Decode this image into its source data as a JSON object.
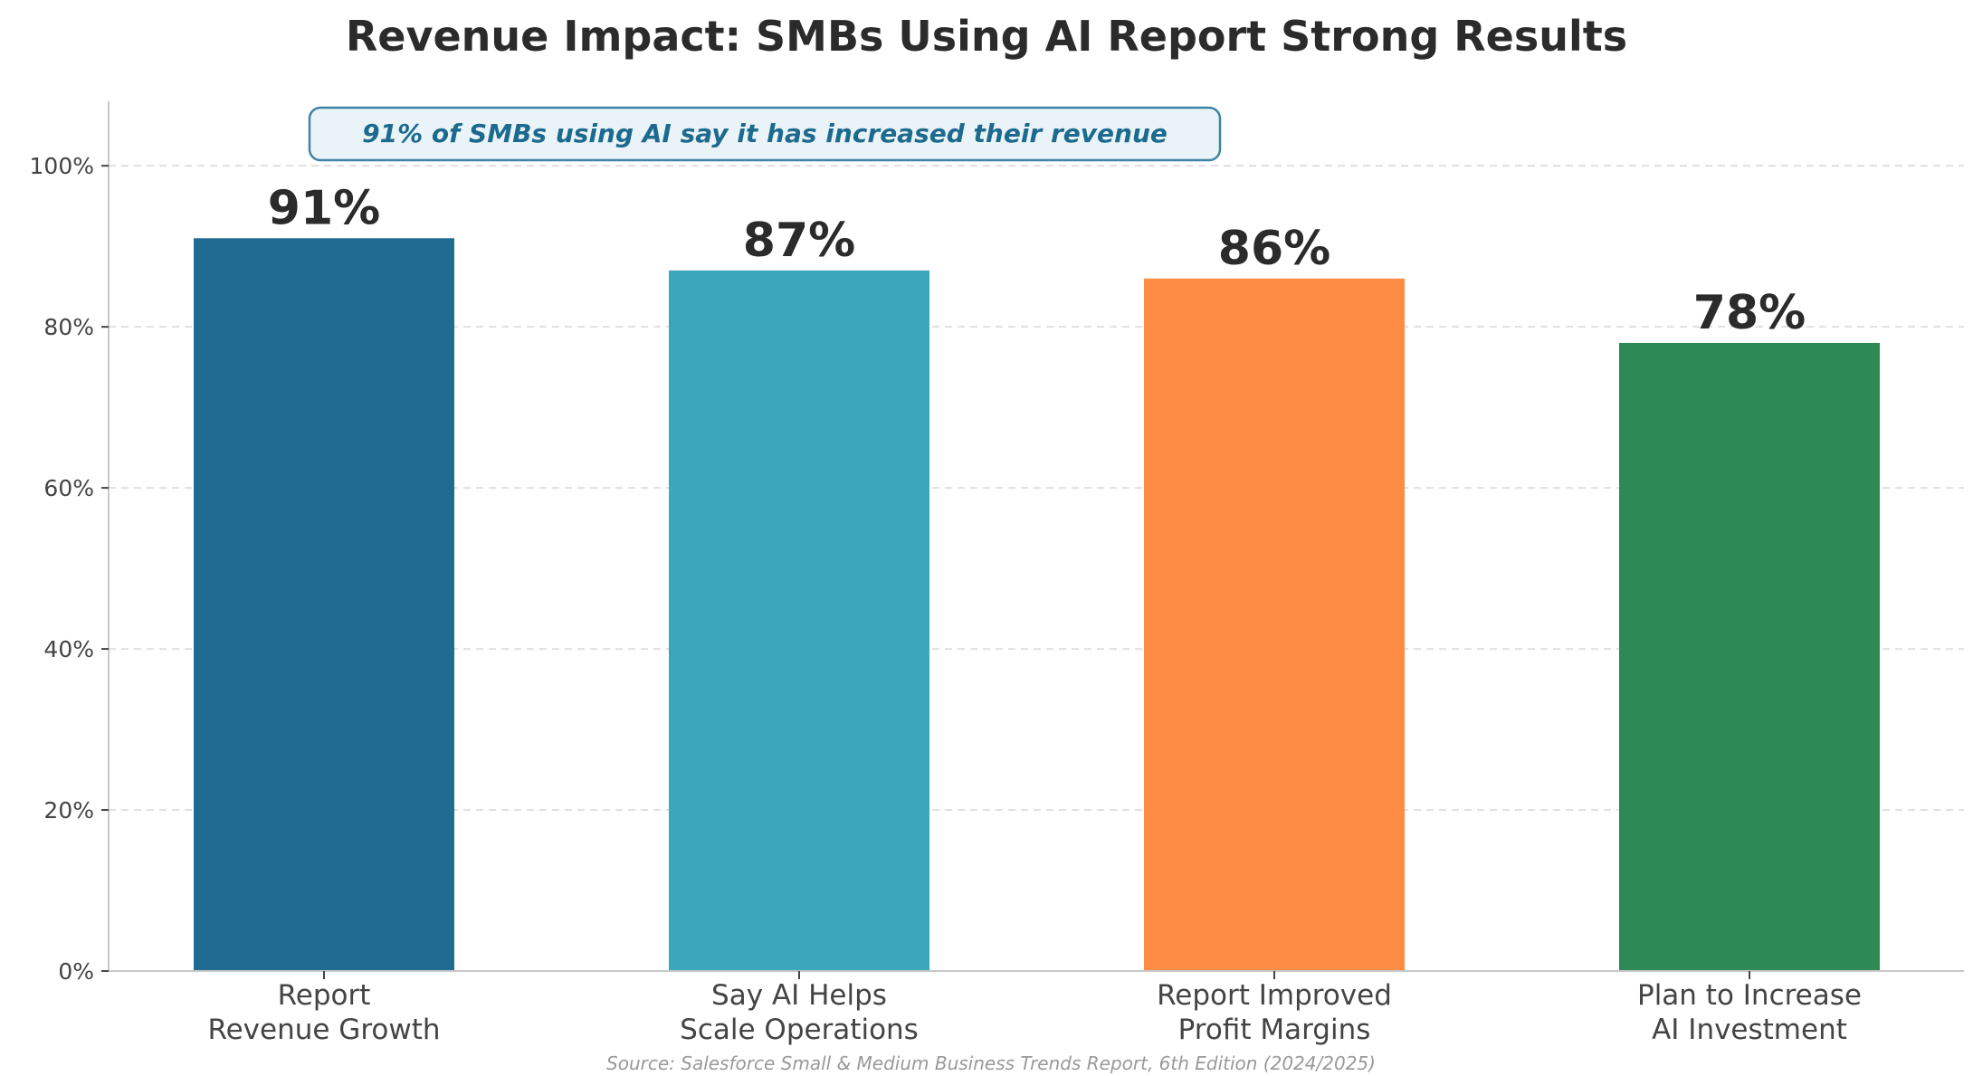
{
  "chart_data": {
    "type": "bar",
    "title": "Revenue Impact: SMBs Using AI Report Strong Results",
    "xlabel": "",
    "ylabel": "",
    "ylim": [
      0,
      108
    ],
    "yticks": [
      0,
      20,
      40,
      60,
      80,
      100
    ],
    "ytick_labels": [
      "0%",
      "20%",
      "40%",
      "60%",
      "80%",
      "100%"
    ],
    "grid": "horizontal dashed",
    "categories": [
      [
        "Report",
        "Revenue Growth"
      ],
      [
        "Say AI Helps",
        "Scale Operations"
      ],
      [
        "Report Improved",
        "Profit Margins"
      ],
      [
        "Plan to Increase",
        "AI Investment"
      ]
    ],
    "values": [
      91,
      87,
      86,
      78
    ],
    "value_labels": [
      "91%",
      "87%",
      "86%",
      "78%"
    ],
    "colors": [
      "#1f6b91",
      "#3ba7ba",
      "#ff8c45",
      "#2e8a55"
    ],
    "annotation": "91% of SMBs using AI say it has increased their revenue",
    "source": "Source: Salesforce Small & Medium Business Trends Report, 6th Edition (2024/2025)"
  }
}
